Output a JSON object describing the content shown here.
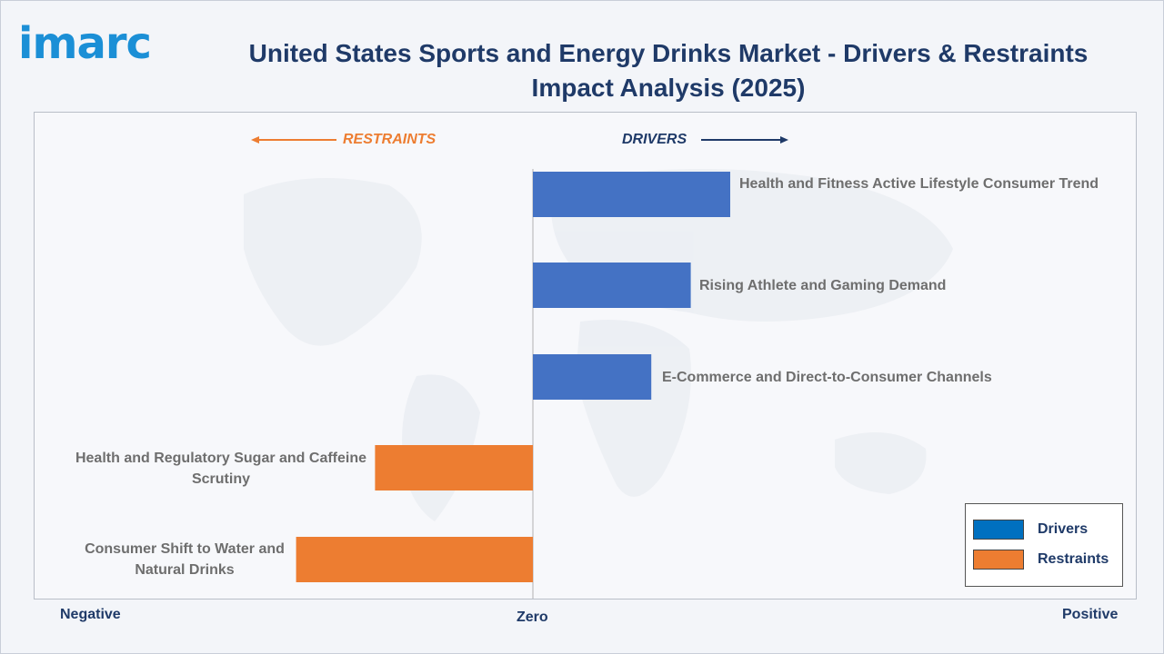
{
  "brand": {
    "logo_text": "imarc",
    "logo_color": "#1b8fd6"
  },
  "title": "United States Sports and Energy Drinks Market - Drivers & Restraints Impact Analysis (2025)",
  "direction_labels": {
    "restraints": "RESTRAINTS",
    "drivers": "DRIVERS"
  },
  "axis": {
    "negative": "Negative",
    "zero": "Zero",
    "positive": "Positive"
  },
  "legend": {
    "drivers": "Drivers",
    "restraints": "Restraints"
  },
  "colors": {
    "drivers": "#4472c4",
    "restraints": "#ed7d31",
    "title": "#1f3a68",
    "label": "#6e6e6e",
    "legend_swatch_drivers": "#0070c0"
  },
  "chart_data": {
    "type": "bar",
    "orientation": "horizontal",
    "title": "United States Sports and Energy Drinks Market - Drivers & Restraints Impact Analysis (2025)",
    "xlim": [
      -1,
      1
    ],
    "grid": false,
    "legend_position": "bottom-right",
    "categories": [
      "Health and Fitness Active Lifestyle Consumer Trend",
      "Rising Athlete and Gaming Demand",
      "E-Commerce and Direct-to-Consumer Channels",
      "Health and Regulatory Sugar and Caffeine Scrutiny",
      "Consumer Shift to Water and Natural Drinks"
    ],
    "series": [
      {
        "name": "Drivers",
        "values": [
          0.35,
          0.28,
          0.21,
          null,
          null
        ]
      },
      {
        "name": "Restraints",
        "values": [
          null,
          null,
          null,
          -0.28,
          -0.42
        ]
      }
    ]
  }
}
